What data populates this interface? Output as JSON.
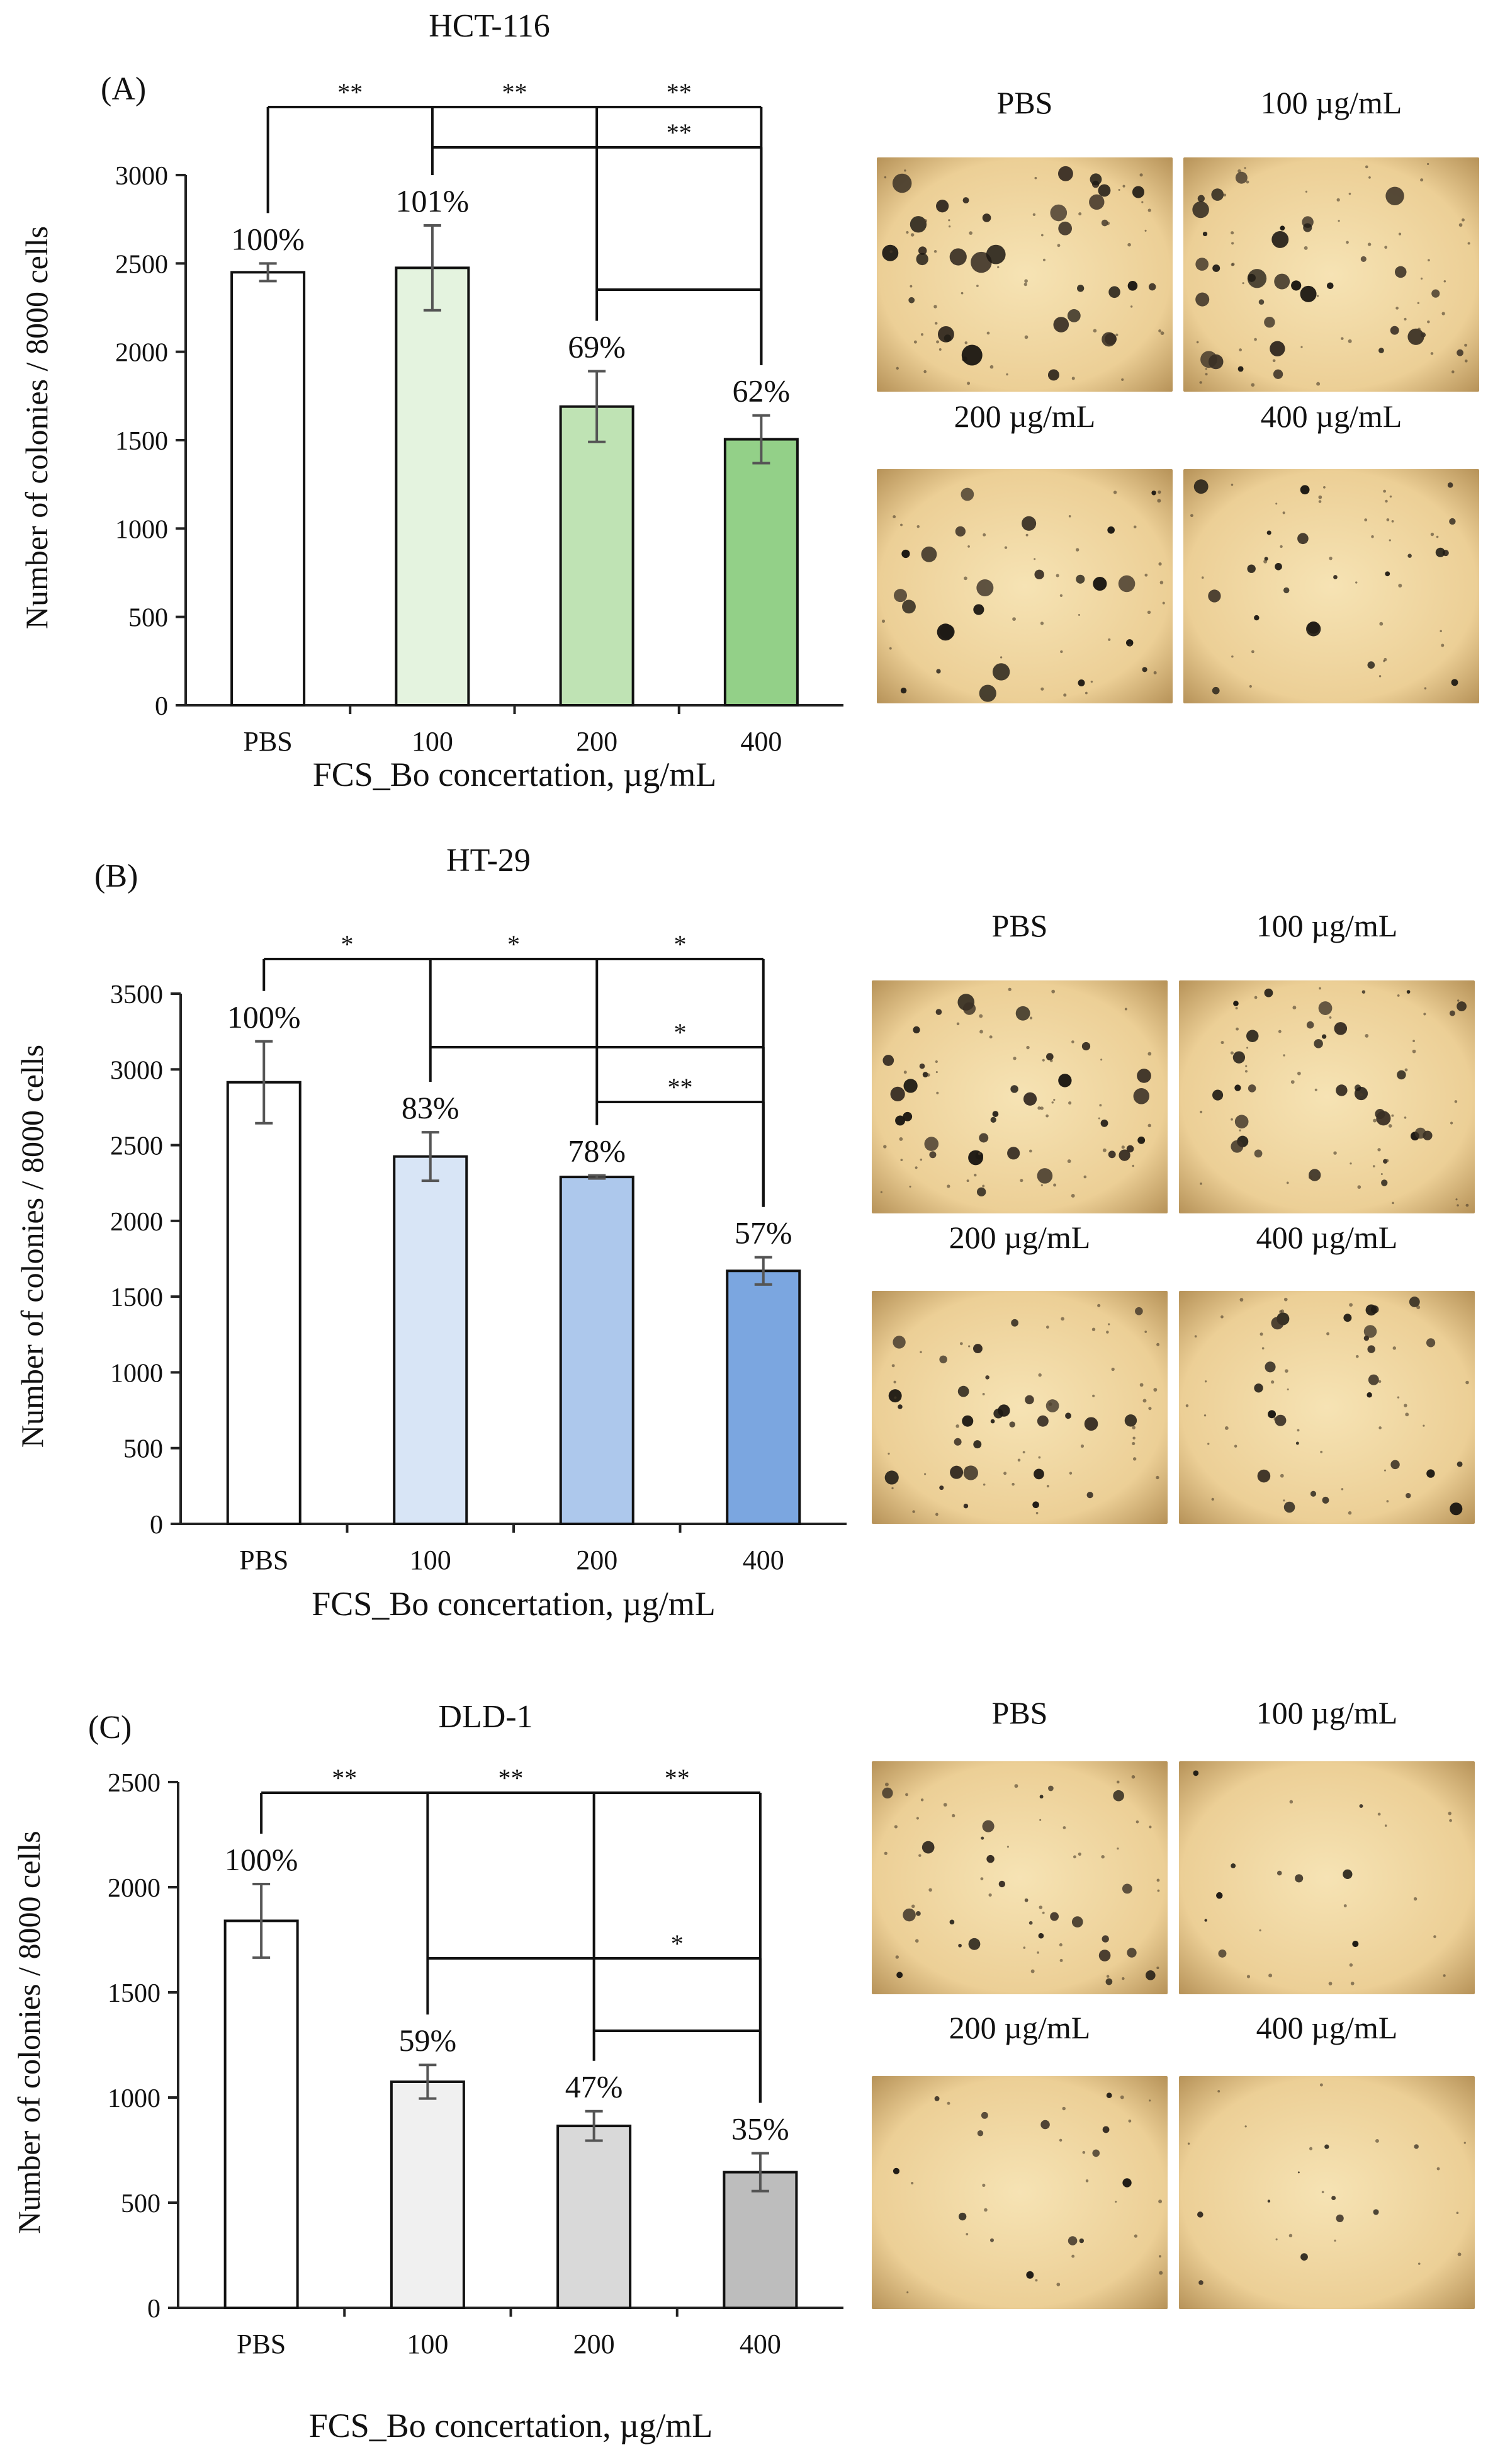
{
  "chart_data": [
    {
      "type": "bar",
      "panel_label": "(A)",
      "title": "HCT-116",
      "xlabel": "FCS_Bo concertation, µg/mL",
      "ylabel": "Number of colonies / 8000 cells",
      "categories": [
        "PBS",
        "100",
        "200",
        "400"
      ],
      "values": [
        2450,
        2475,
        1690,
        1505
      ],
      "errors": [
        50,
        240,
        200,
        135
      ],
      "percent_labels": [
        "100%",
        "101%",
        "69%",
        "62%"
      ],
      "ylim": [
        0,
        3000
      ],
      "yticks": [
        "0",
        "500",
        "1000",
        "1500",
        "2000",
        "2500",
        "3000"
      ],
      "bar_colors": [
        "#ffffff",
        "#e4f3df",
        "#bfe3b4",
        "#93d088"
      ],
      "significance": [
        {
          "from": 0,
          "to": 3,
          "label": "**"
        },
        {
          "from": 1,
          "to": 3,
          "label": "**"
        },
        {
          "from": 2,
          "to": 3,
          "label": ""
        }
      ],
      "images": [
        {
          "label": "PBS",
          "density": 34,
          "scale": 1.3
        },
        {
          "label": "100 µg/mL",
          "density": 34,
          "scale": 1.2
        },
        {
          "label": "200 µg/mL",
          "density": 24,
          "scale": 1.1
        },
        {
          "label": "400 µg/mL",
          "density": 22,
          "scale": 0.9
        }
      ]
    },
    {
      "type": "bar",
      "panel_label": "(B)",
      "title": "HT-29",
      "xlabel": "FCS_Bo concertation, µg/mL",
      "ylabel": "Number of colonies / 8000 cells",
      "categories": [
        "PBS",
        "100",
        "200",
        "400"
      ],
      "values": [
        2915,
        2425,
        2290,
        1670
      ],
      "errors": [
        270,
        160,
        10,
        90
      ],
      "percent_labels": [
        "100%",
        "83%",
        "78%",
        "57%"
      ],
      "ylim": [
        0,
        3500
      ],
      "yticks": [
        "0",
        "500",
        "1000",
        "1500",
        "2000",
        "2500",
        "3000",
        "3500"
      ],
      "bar_colors": [
        "#ffffff",
        "#d8e5f6",
        "#adc8ec",
        "#7ba6e0"
      ],
      "significance": [
        {
          "from": 0,
          "to": 3,
          "label": "*"
        },
        {
          "from": 1,
          "to": 3,
          "label": "*"
        },
        {
          "from": 2,
          "to": 3,
          "label": "**"
        }
      ],
      "images": [
        {
          "label": "PBS",
          "density": 34,
          "scale": 1.1
        },
        {
          "label": "100 µg/mL",
          "density": 32,
          "scale": 0.9
        },
        {
          "label": "200 µg/mL",
          "density": 30,
          "scale": 0.9
        },
        {
          "label": "400 µg/mL",
          "density": 26,
          "scale": 0.8
        }
      ]
    },
    {
      "type": "bar",
      "panel_label": "(C)",
      "title": "DLD-1",
      "xlabel": "FCS_Bo concertation, µg/mL",
      "ylabel": "Number of colonies / 8000 cells",
      "categories": [
        "PBS",
        "100",
        "200",
        "400"
      ],
      "values": [
        1840,
        1075,
        865,
        645
      ],
      "errors": [
        175,
        80,
        70,
        90
      ],
      "percent_labels": [
        "100%",
        "59%",
        "47%",
        "35%"
      ],
      "ylim": [
        0,
        2500
      ],
      "yticks": [
        "0",
        "500",
        "1000",
        "1500",
        "2000",
        "2500"
      ],
      "bar_colors": [
        "#ffffff",
        "#f0f0f0",
        "#d9d9d9",
        "#bdbdbd"
      ],
      "significance": [
        {
          "from": 0,
          "to": 3,
          "label": "**"
        },
        {
          "from": 1,
          "to": 3,
          "label": "*"
        },
        {
          "from": 2,
          "to": 3,
          "label": ""
        }
      ],
      "images": [
        {
          "label": "PBS",
          "density": 26,
          "scale": 0.8
        },
        {
          "label": "100 µg/mL",
          "density": 10,
          "scale": 0.6
        },
        {
          "label": "200 µg/mL",
          "density": 14,
          "scale": 0.6
        },
        {
          "label": "400 µg/mL",
          "density": 10,
          "scale": 0.5
        }
      ]
    }
  ]
}
